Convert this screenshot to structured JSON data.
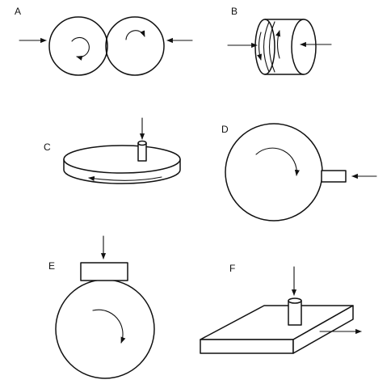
{
  "figure": {
    "panels": [
      {
        "id": "a",
        "label": "A"
      },
      {
        "id": "b",
        "label": "B"
      },
      {
        "id": "c",
        "label": "C"
      },
      {
        "id": "d",
        "label": "D"
      },
      {
        "id": "e",
        "label": "E"
      },
      {
        "id": "f",
        "label": "F"
      }
    ]
  },
  "colors": {
    "ink": "#111111",
    "background": "#ffffff"
  }
}
